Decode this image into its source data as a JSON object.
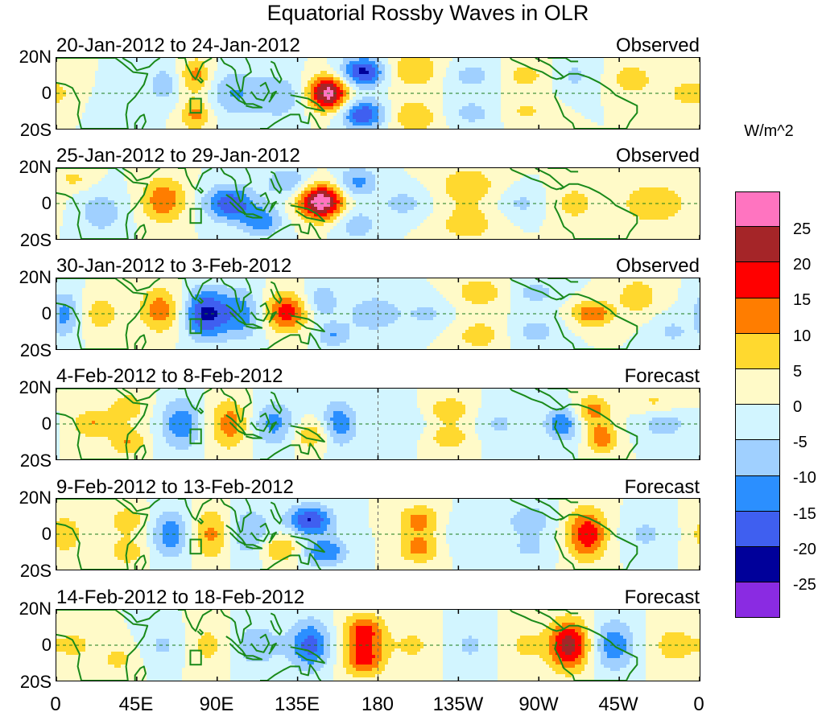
{
  "chart_data": {
    "type": "heatmap",
    "title": "Equatorial Rossby Waves in OLR",
    "units": "W/m^2",
    "x_tick_labels": [
      "0",
      "45E",
      "90E",
      "135E",
      "180",
      "135W",
      "90W",
      "45W",
      "0"
    ],
    "y_tick_labels": [
      "20N",
      "0",
      "20S"
    ],
    "x_range_deg_east": [
      0,
      360
    ],
    "y_range_deg": [
      -20,
      20
    ],
    "colorbar": {
      "levels": [
        -25,
        -20,
        -15,
        -10,
        -5,
        0,
        5,
        10,
        15,
        20,
        25
      ],
      "labels": [
        "25",
        "20",
        "15",
        "10",
        "5",
        "0",
        "-5",
        "-10",
        "-15",
        "-20",
        "-25"
      ],
      "colors": [
        "#ff74c0",
        "#a52528",
        "#ff0000",
        "#ff7d00",
        "#ffd92f",
        "#fffac8",
        "#d2f5ff",
        "#a0d0ff",
        "#2b8fff",
        "#3f5ff0",
        "#00009a",
        "#8a2be2"
      ]
    },
    "panels": [
      {
        "date_range": "20-Jan-2012 to 24-Jan-2012",
        "kind": "Observed",
        "anomalies": [
          {
            "lon": 78,
            "lat": 10,
            "sx": 6,
            "sy": 7,
            "v": 12
          },
          {
            "lon": 78,
            "lat": -12,
            "sx": 6,
            "sy": 6,
            "v": 12
          },
          {
            "lon": 60,
            "lat": 5,
            "sx": 6,
            "sy": 8,
            "v": -8
          },
          {
            "lon": 100,
            "lat": 0,
            "sx": 10,
            "sy": 9,
            "v": -10
          },
          {
            "lon": 125,
            "lat": -2,
            "sx": 10,
            "sy": 9,
            "v": -9
          },
          {
            "lon": 152,
            "lat": 0,
            "sx": 8,
            "sy": 7,
            "v": 28
          },
          {
            "lon": 172,
            "lat": 12,
            "sx": 9,
            "sy": 6,
            "v": -22
          },
          {
            "lon": 172,
            "lat": -12,
            "sx": 9,
            "sy": 6,
            "v": -20
          },
          {
            "lon": 200,
            "lat": 13,
            "sx": 12,
            "sy": 7,
            "v": 10
          },
          {
            "lon": 200,
            "lat": -13,
            "sx": 12,
            "sy": 7,
            "v": 9
          },
          {
            "lon": 232,
            "lat": 10,
            "sx": 12,
            "sy": 6,
            "v": -7
          },
          {
            "lon": 232,
            "lat": -11,
            "sx": 12,
            "sy": 6,
            "v": -7
          },
          {
            "lon": 262,
            "lat": 10,
            "sx": 10,
            "sy": 6,
            "v": 7
          },
          {
            "lon": 262,
            "lat": -10,
            "sx": 10,
            "sy": 6,
            "v": 6
          },
          {
            "lon": 290,
            "lat": 10,
            "sx": 8,
            "sy": 7,
            "v": -6
          },
          {
            "lon": 322,
            "lat": 8,
            "sx": 8,
            "sy": 6,
            "v": 9
          },
          {
            "lon": 355,
            "lat": 0,
            "sx": 10,
            "sy": 6,
            "v": 8
          },
          {
            "lon": 35,
            "lat": -8,
            "sx": 8,
            "sy": 7,
            "v": -5
          }
        ]
      },
      {
        "date_range": "25-Jan-2012 to 29-Jan-2012",
        "kind": "Observed",
        "anomalies": [
          {
            "lon": 60,
            "lat": 2,
            "sx": 9,
            "sy": 9,
            "v": 14
          },
          {
            "lon": 97,
            "lat": 0,
            "sx": 10,
            "sy": 7,
            "v": -19
          },
          {
            "lon": 115,
            "lat": -10,
            "sx": 8,
            "sy": 6,
            "v": -13
          },
          {
            "lon": 148,
            "lat": 1,
            "sx": 9,
            "sy": 7,
            "v": 30
          },
          {
            "lon": 130,
            "lat": 12,
            "sx": 9,
            "sy": 6,
            "v": -10
          },
          {
            "lon": 168,
            "lat": 12,
            "sx": 8,
            "sy": 6,
            "v": -12
          },
          {
            "lon": 168,
            "lat": -12,
            "sx": 8,
            "sy": 6,
            "v": -9
          },
          {
            "lon": 195,
            "lat": 0,
            "sx": 10,
            "sy": 6,
            "v": -7
          },
          {
            "lon": 230,
            "lat": 10,
            "sx": 12,
            "sy": 8,
            "v": 9
          },
          {
            "lon": 230,
            "lat": -12,
            "sx": 12,
            "sy": 7,
            "v": 8
          },
          {
            "lon": 260,
            "lat": 0,
            "sx": 9,
            "sy": 6,
            "v": -6
          },
          {
            "lon": 290,
            "lat": 0,
            "sx": 9,
            "sy": 8,
            "v": 7
          },
          {
            "lon": 335,
            "lat": 0,
            "sx": 14,
            "sy": 9,
            "v": 9
          },
          {
            "lon": 25,
            "lat": -5,
            "sx": 10,
            "sy": 9,
            "v": -8
          },
          {
            "lon": 10,
            "lat": 14,
            "sx": 8,
            "sy": 5,
            "v": 6
          }
        ]
      },
      {
        "date_range": "30-Jan-2012 to 3-Feb-2012",
        "kind": "Observed",
        "anomalies": [
          {
            "lon": 5,
            "lat": 0,
            "sx": 6,
            "sy": 9,
            "v": -12
          },
          {
            "lon": 25,
            "lat": 0,
            "sx": 8,
            "sy": 8,
            "v": 8
          },
          {
            "lon": 58,
            "lat": 2,
            "sx": 8,
            "sy": 9,
            "v": 13
          },
          {
            "lon": 83,
            "lat": 0,
            "sx": 8,
            "sy": 10,
            "v": -20
          },
          {
            "lon": 103,
            "lat": 0,
            "sx": 10,
            "sy": 10,
            "v": -14
          },
          {
            "lon": 128,
            "lat": 1,
            "sx": 10,
            "sy": 8,
            "v": 18
          },
          {
            "lon": 148,
            "lat": 7,
            "sx": 7,
            "sy": 7,
            "v": -10
          },
          {
            "lon": 155,
            "lat": -12,
            "sx": 7,
            "sy": 5,
            "v": -10
          },
          {
            "lon": 178,
            "lat": 0,
            "sx": 10,
            "sy": 7,
            "v": -10
          },
          {
            "lon": 207,
            "lat": 0,
            "sx": 9,
            "sy": 6,
            "v": -6
          },
          {
            "lon": 237,
            "lat": 12,
            "sx": 10,
            "sy": 6,
            "v": 9
          },
          {
            "lon": 237,
            "lat": -12,
            "sx": 10,
            "sy": 6,
            "v": 8
          },
          {
            "lon": 268,
            "lat": 12,
            "sx": 10,
            "sy": 5,
            "v": -7
          },
          {
            "lon": 268,
            "lat": -10,
            "sx": 10,
            "sy": 6,
            "v": -7
          },
          {
            "lon": 300,
            "lat": 0,
            "sx": 8,
            "sy": 5,
            "v": 15
          },
          {
            "lon": 325,
            "lat": 10,
            "sx": 8,
            "sy": 7,
            "v": 9
          },
          {
            "lon": 345,
            "lat": -10,
            "sx": 8,
            "sy": 6,
            "v": -6
          }
        ]
      },
      {
        "date_range": "4-Feb-2012 to 8-Feb-2012",
        "kind": "Forecast",
        "anomalies": [
          {
            "lon": 20,
            "lat": 0,
            "sx": 8,
            "sy": 6,
            "v": 10
          },
          {
            "lon": 40,
            "lat": 10,
            "sx": 8,
            "sy": 6,
            "v": 8
          },
          {
            "lon": 40,
            "lat": -10,
            "sx": 7,
            "sy": 6,
            "v": 10
          },
          {
            "lon": 70,
            "lat": 0,
            "sx": 8,
            "sy": 10,
            "v": -14
          },
          {
            "lon": 97,
            "lat": 0,
            "sx": 8,
            "sy": 10,
            "v": 13
          },
          {
            "lon": 122,
            "lat": 0,
            "sx": 9,
            "sy": 9,
            "v": -12
          },
          {
            "lon": 143,
            "lat": -6,
            "sx": 8,
            "sy": 6,
            "v": 10
          },
          {
            "lon": 158,
            "lat": 0,
            "sx": 7,
            "sy": 9,
            "v": -14
          },
          {
            "lon": 190,
            "lat": 0,
            "sx": 10,
            "sy": 7,
            "v": -5
          },
          {
            "lon": 220,
            "lat": 8,
            "sx": 8,
            "sy": 5,
            "v": 10
          },
          {
            "lon": 220,
            "lat": -8,
            "sx": 8,
            "sy": 5,
            "v": 9
          },
          {
            "lon": 248,
            "lat": 0,
            "sx": 8,
            "sy": 7,
            "v": -6
          },
          {
            "lon": 283,
            "lat": 0,
            "sx": 7,
            "sy": 7,
            "v": -14
          },
          {
            "lon": 300,
            "lat": 8,
            "sx": 7,
            "sy": 6,
            "v": 12
          },
          {
            "lon": 305,
            "lat": -8,
            "sx": 6,
            "sy": 6,
            "v": 14
          },
          {
            "lon": 340,
            "lat": 0,
            "sx": 10,
            "sy": 6,
            "v": -8
          },
          {
            "lon": 335,
            "lat": 12,
            "sx": 10,
            "sy": 5,
            "v": 6
          }
        ]
      },
      {
        "date_range": "9-Feb-2012 to 13-Feb-2012",
        "kind": "Forecast",
        "anomalies": [
          {
            "lon": 5,
            "lat": 0,
            "sx": 8,
            "sy": 9,
            "v": 8
          },
          {
            "lon": 40,
            "lat": 8,
            "sx": 8,
            "sy": 6,
            "v": 8
          },
          {
            "lon": 40,
            "lat": -10,
            "sx": 8,
            "sy": 6,
            "v": 8
          },
          {
            "lon": 64,
            "lat": 0,
            "sx": 8,
            "sy": 10,
            "v": -13
          },
          {
            "lon": 87,
            "lat": 0,
            "sx": 8,
            "sy": 10,
            "v": 12
          },
          {
            "lon": 108,
            "lat": 0,
            "sx": 9,
            "sy": 10,
            "v": -11
          },
          {
            "lon": 125,
            "lat": -8,
            "sx": 9,
            "sy": 6,
            "v": 11
          },
          {
            "lon": 142,
            "lat": 8,
            "sx": 9,
            "sy": 6,
            "v": -20
          },
          {
            "lon": 150,
            "lat": -10,
            "sx": 9,
            "sy": 6,
            "v": -15
          },
          {
            "lon": 203,
            "lat": 8,
            "sx": 8,
            "sy": 6,
            "v": 12
          },
          {
            "lon": 203,
            "lat": -8,
            "sx": 8,
            "sy": 6,
            "v": 12
          },
          {
            "lon": 232,
            "lat": 0,
            "sx": 10,
            "sy": 8,
            "v": -5
          },
          {
            "lon": 265,
            "lat": 8,
            "sx": 9,
            "sy": 6,
            "v": -9
          },
          {
            "lon": 265,
            "lat": -8,
            "sx": 9,
            "sy": 6,
            "v": -6
          },
          {
            "lon": 297,
            "lat": 0,
            "sx": 8,
            "sy": 10,
            "v": 19
          },
          {
            "lon": 330,
            "lat": 0,
            "sx": 10,
            "sy": 8,
            "v": -6
          }
        ]
      },
      {
        "date_range": "14-Feb-2012 to 18-Feb-2012",
        "kind": "Forecast",
        "anomalies": [
          {
            "lon": 10,
            "lat": 0,
            "sx": 10,
            "sy": 8,
            "v": 6
          },
          {
            "lon": 35,
            "lat": -8,
            "sx": 8,
            "sy": 7,
            "v": 6
          },
          {
            "lon": 60,
            "lat": 0,
            "sx": 9,
            "sy": 8,
            "v": -6
          },
          {
            "lon": 85,
            "lat": 0,
            "sx": 9,
            "sy": 9,
            "v": 7
          },
          {
            "lon": 112,
            "lat": 0,
            "sx": 10,
            "sy": 9,
            "v": -9
          },
          {
            "lon": 142,
            "lat": 0,
            "sx": 8,
            "sy": 10,
            "v": -17
          },
          {
            "lon": 172,
            "lat": 8,
            "sx": 8,
            "sy": 7,
            "v": 17
          },
          {
            "lon": 172,
            "lat": -8,
            "sx": 8,
            "sy": 7,
            "v": 17
          },
          {
            "lon": 200,
            "lat": 0,
            "sx": 10,
            "sy": 8,
            "v": 6
          },
          {
            "lon": 232,
            "lat": 0,
            "sx": 10,
            "sy": 8,
            "v": -6
          },
          {
            "lon": 262,
            "lat": 0,
            "sx": 10,
            "sy": 8,
            "v": 6
          },
          {
            "lon": 287,
            "lat": 0,
            "sx": 8,
            "sy": 10,
            "v": 23
          },
          {
            "lon": 312,
            "lat": 0,
            "sx": 8,
            "sy": 10,
            "v": -14
          },
          {
            "lon": 345,
            "lat": 0,
            "sx": 9,
            "sy": 9,
            "v": 7
          }
        ]
      }
    ]
  }
}
